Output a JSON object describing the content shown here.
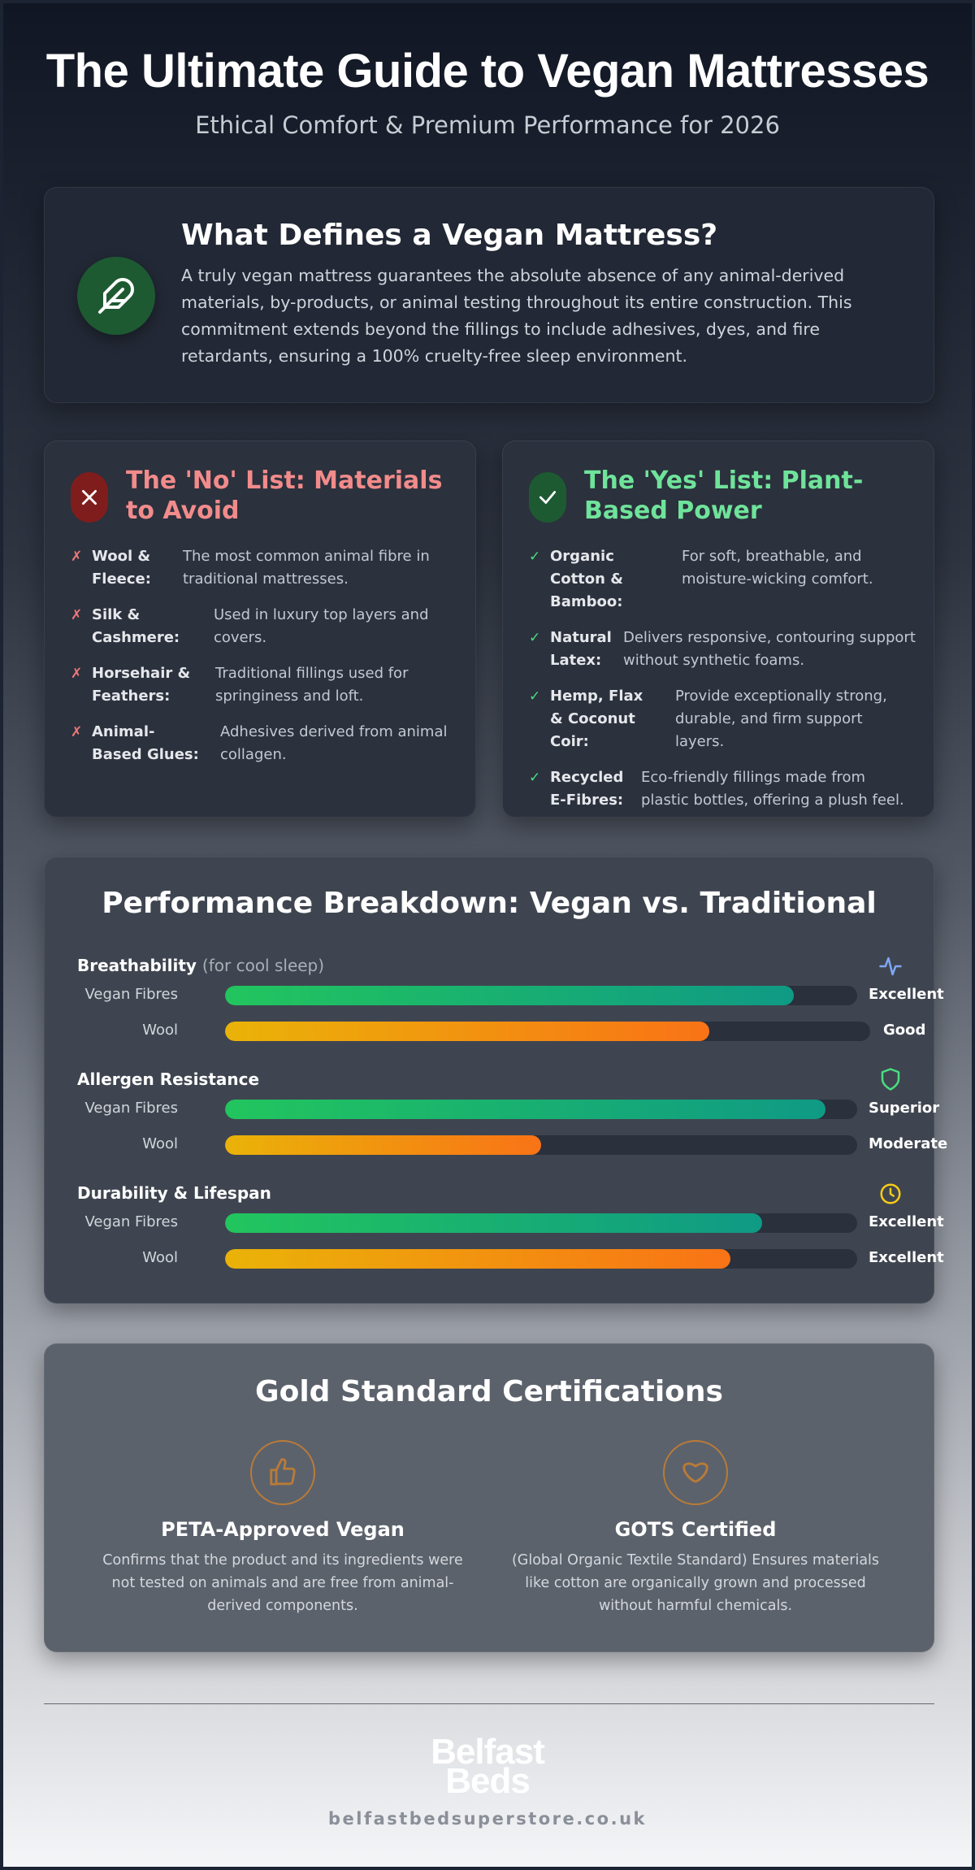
{
  "header": {
    "title": "The Ultimate Guide to Vegan Mattresses",
    "subtitle": "Ethical Comfort & Premium Performance for 2026"
  },
  "definition": {
    "icon": "feather-icon",
    "title": "What Defines a Vegan Mattress?",
    "body": "A truly vegan mattress guarantees the absolute absence of any animal-derived materials, by-products, or animal testing throughout its entire construction. This commitment extends beyond the fillings to include adhesives, dyes, and fire retardants, ensuring a 100% cruelty-free sleep environment."
  },
  "no_list": {
    "icon": "x-icon",
    "title": "The 'No' List: Materials to Avoid",
    "mark": "✗",
    "color": "#f28b8b",
    "items": [
      {
        "name": "Wool & Fleece:",
        "desc": "The most common animal fibre in traditional mattresses."
      },
      {
        "name": "Silk & Cashmere:",
        "desc": "Used in luxury top layers and covers."
      },
      {
        "name": "Horsehair & Feathers:",
        "desc": "Traditional fillings used for springiness and loft."
      },
      {
        "name": "Animal-Based Glues:",
        "desc": "Adhesives derived from animal collagen."
      }
    ]
  },
  "yes_list": {
    "icon": "check-icon",
    "title": "The 'Yes' List: Plant-Based Power",
    "mark": "✓",
    "color": "#6fe39a",
    "items": [
      {
        "name": "Organic Cotton & Bamboo:",
        "desc": "For soft, breathable, and moisture-wicking comfort."
      },
      {
        "name": "Natural Latex:",
        "desc": "Delivers responsive, contouring support without synthetic foams."
      },
      {
        "name": "Hemp, Flax & Coconut Coir:",
        "desc": "Provide exceptionally strong, durable, and firm support layers."
      },
      {
        "name": "Recycled E-Fibres:",
        "desc": "Eco-friendly fillings made from plastic bottles, offering a plush feel."
      }
    ]
  },
  "performance": {
    "title": "Performance Breakdown: Vegan vs. Traditional",
    "groups": [
      {
        "title": "Breathability",
        "subtitle": "(for cool sleep)",
        "icon": "pulse-icon",
        "icon_color": "#7fa7f5",
        "bars": [
          {
            "label": "Vegan Fibres",
            "value": 0.9,
            "rating": "Excellent",
            "kind": "vegan"
          },
          {
            "label": "Wool",
            "value": 0.75,
            "rating": "Good",
            "kind": "wool"
          }
        ]
      },
      {
        "title": "Allergen Resistance",
        "subtitle": "",
        "icon": "shield-icon",
        "icon_color": "#4ade80",
        "bars": [
          {
            "label": "Vegan Fibres",
            "value": 0.95,
            "rating": "Superior",
            "kind": "vegan"
          },
          {
            "label": "Wool",
            "value": 0.5,
            "rating": "Moderate",
            "kind": "wool"
          }
        ]
      },
      {
        "title": "Durability & Lifespan",
        "subtitle": "",
        "icon": "clock-icon",
        "icon_color": "#facc15",
        "bars": [
          {
            "label": "Vegan Fibres",
            "value": 0.85,
            "rating": "Excellent",
            "kind": "vegan"
          },
          {
            "label": "Wool",
            "value": 0.8,
            "rating": "Excellent",
            "kind": "wool"
          }
        ]
      }
    ]
  },
  "certifications": {
    "title": "Gold Standard Certifications",
    "items": [
      {
        "name": "PETA-Approved Vegan",
        "icon": "thumbs-up-icon",
        "desc": "Confirms that the product and its ingredients were not tested on animals and are free from animal-derived components."
      },
      {
        "name": "GOTS Certified",
        "icon": "heart-icon",
        "desc": "(Global Organic Textile Standard) Ensures materials like cotton are organically grown and processed without harmful chemicals."
      }
    ]
  },
  "footer": {
    "logo_line1": "Belfast",
    "logo_line2": "Beds",
    "url": "belfastbedsuperstore.co.uk"
  }
}
